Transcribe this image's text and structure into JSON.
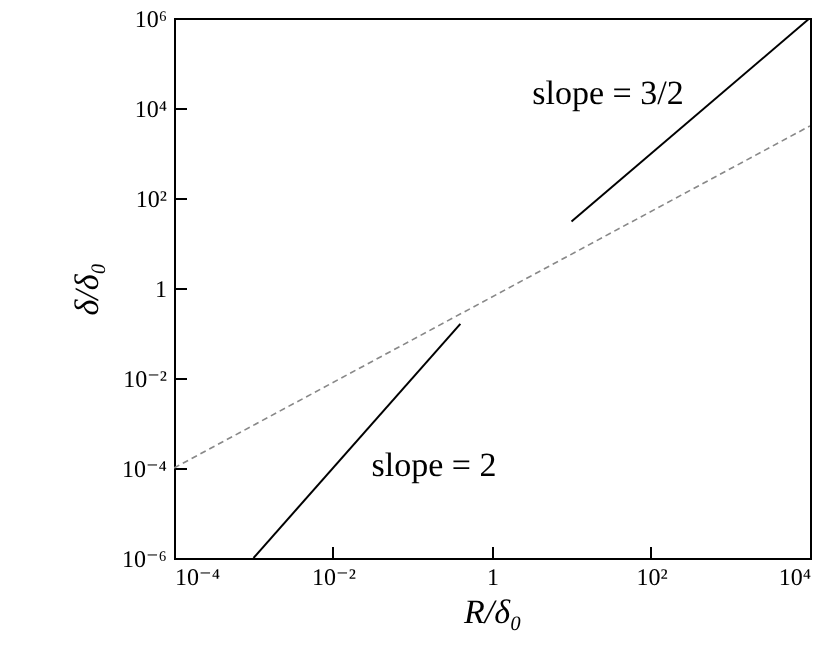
{
  "chart_data": {
    "type": "line",
    "xlabel": "R/δ₀",
    "ylabel": "δ/δ₀",
    "log": "xy",
    "grid": false,
    "marker": "none",
    "xlim": [
      0.0001,
      10000
    ],
    "ylim": [
      1e-06,
      1000000
    ],
    "xticks": [
      {
        "value": 0.0001,
        "label": "10⁻⁴"
      },
      {
        "value": 0.01,
        "label": "10⁻²"
      },
      1,
      {
        "value": 100,
        "label": "10²"
      },
      {
        "value": 10000,
        "label": "10⁴"
      }
    ],
    "yticks": [
      {
        "value": 1e-06,
        "label": "10⁻⁶"
      },
      {
        "value": 0.0001,
        "label": "10⁻⁴"
      },
      {
        "value": 0.01,
        "label": "10⁻²"
      },
      1,
      {
        "value": 100,
        "label": "10²"
      },
      {
        "value": 10000,
        "label": "10⁴"
      },
      {
        "value": 1000000,
        "label": "10⁶"
      }
    ],
    "series": [
      {
        "color": "#888888",
        "line_style": "dashed",
        "x": [
          0.0001,
          10000
        ],
        "values": [
          0.0001,
          4000
        ]
      },
      {
        "color": "#000000",
        "line_style": "solid",
        "x": [
          10,
          10000
        ],
        "values": [
          30,
          1000000
        ]
      },
      {
        "color": "#000000",
        "line_style": "solid",
        "x": [
          0.001,
          0.4
        ],
        "values": [
          1e-06,
          0.16
        ]
      }
    ],
    "annotations": [
      "slope = 3/2",
      "slope = 2"
    ]
  }
}
